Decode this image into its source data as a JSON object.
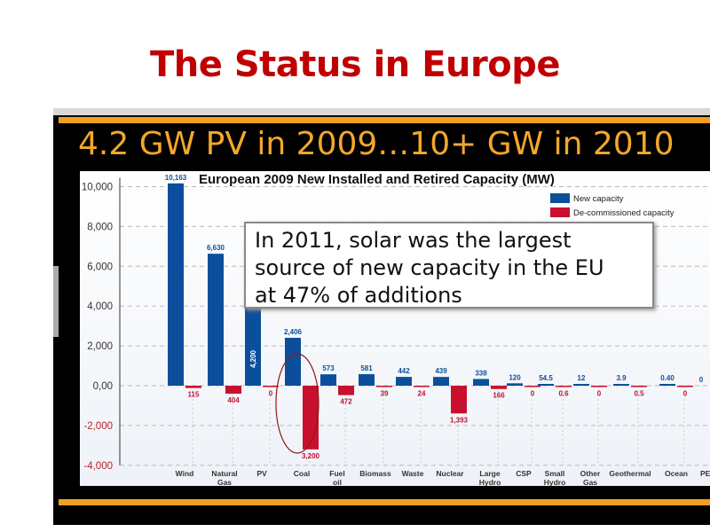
{
  "page_title": "The Status in Europe",
  "slide_heading": "4.2 GW PV in 2009…10+ GW in 2010",
  "callout": {
    "lines": [
      "In 2011, solar was the largest",
      "source of new capacity in the EU",
      "at 47% of additions"
    ]
  },
  "chart_data": {
    "type": "bar",
    "title": "European 2009 New Installed and Retired Capacity (MW)",
    "categories": [
      "Wind",
      "Natural Gas",
      "PV",
      "Coal",
      "Fuel oil",
      "Biomass",
      "Waste",
      "Nuclear",
      "Large Hydro",
      "CSP",
      "Small Hydro",
      "Other Gas",
      "Geothermal",
      "Ocean",
      "PEAT"
    ],
    "category_lines": [
      [
        "Wind"
      ],
      [
        "Natural",
        "Gas"
      ],
      [
        "PV"
      ],
      [
        "Coal"
      ],
      [
        "Fuel",
        "oil"
      ],
      [
        "Biomass"
      ],
      [
        "Waste"
      ],
      [
        "Nuclear"
      ],
      [
        "Large",
        "Hydro"
      ],
      [
        "CSP"
      ],
      [
        "Small",
        "Hydro"
      ],
      [
        "Other",
        "Gas"
      ],
      [
        "Geothermal"
      ],
      [
        "Ocean"
      ],
      [
        "PEAT"
      ]
    ],
    "series": [
      {
        "name": "New capacity",
        "color": "#0b4f9c",
        "values": [
          10163,
          6630,
          4200,
          2406,
          573,
          581,
          442,
          439,
          338,
          120,
          54.5,
          12,
          3.9,
          0.4,
          0
        ],
        "labels": [
          "10,163",
          "6,630",
          "4,200",
          "2,406",
          "573",
          "581",
          "442",
          "439",
          "338",
          "120",
          "54.5",
          "12",
          "3.9",
          "0.40",
          "0"
        ]
      },
      {
        "name": "De-commissioned capacity",
        "color": "#c8102e",
        "values": [
          -115,
          -404,
          0,
          -3200,
          -472,
          -39,
          -24,
          -1393,
          -166,
          0,
          -0.6,
          0,
          -0.5,
          0,
          0
        ],
        "labels": [
          "115",
          "404",
          "0",
          "3,200",
          "472",
          "39",
          "24",
          "1,393",
          "166",
          "0",
          "0.6",
          "0",
          "0.5",
          "0",
          "0"
        ]
      }
    ],
    "yticks": [
      10000,
      8000,
      6000,
      4000,
      2000,
      0,
      -2000,
      -4000
    ],
    "ytick_labels": [
      "10,000",
      "8,000",
      "6,000",
      "4,000",
      "2,000",
      "0,00",
      "-2,000",
      "-4,000"
    ],
    "ylim": [
      -4000,
      10000
    ],
    "legend": "top-right",
    "annotation": "Coal decommissioned bar circled"
  }
}
